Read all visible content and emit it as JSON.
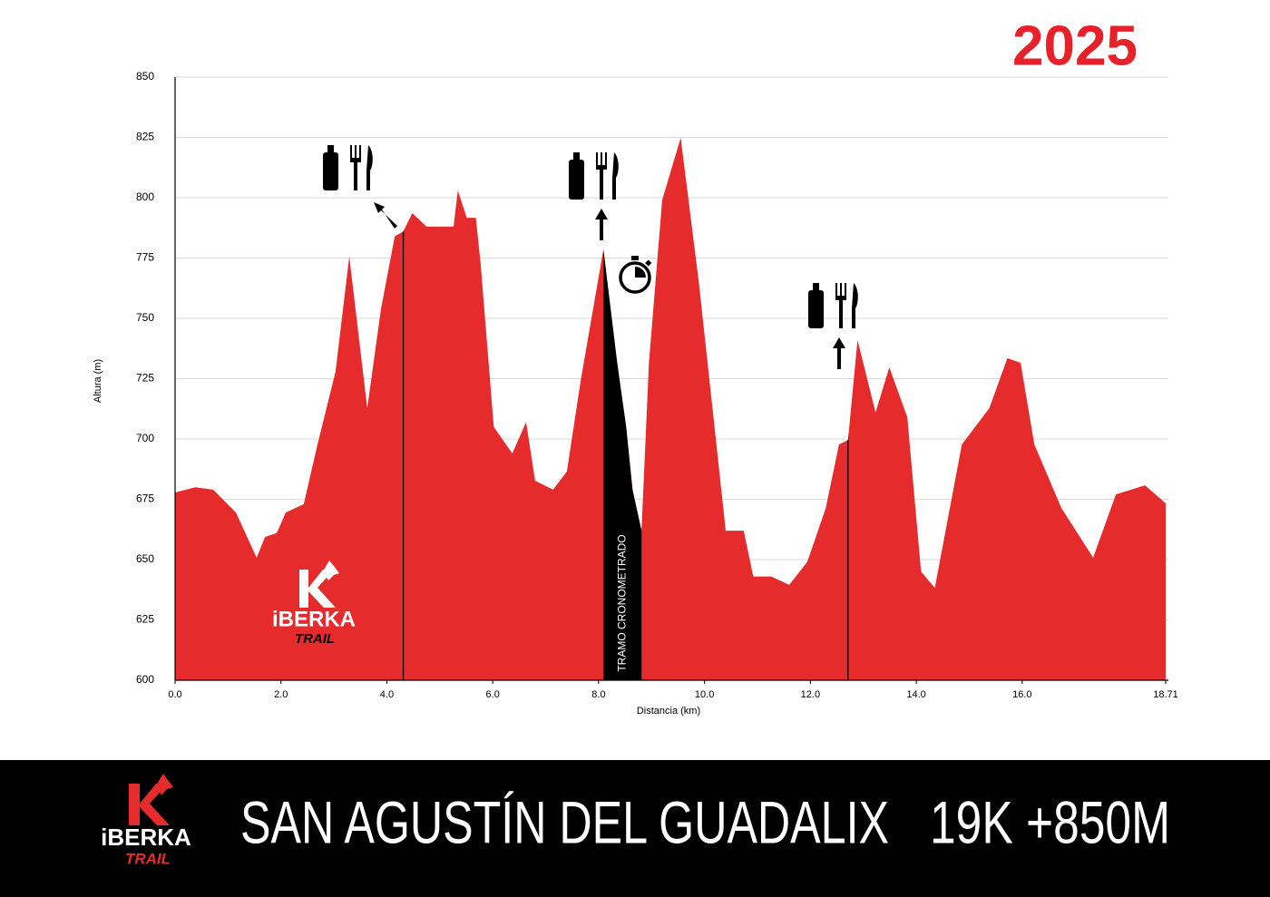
{
  "chart_data": {
    "type": "area",
    "year": "2025",
    "ylabel": "Altura (m)",
    "xlabel": "Distancia (km)",
    "color": "#e52b2b",
    "x": [
      0,
      0.38,
      0.72,
      1.15,
      1.54,
      1.7,
      1.92,
      2.09,
      2.43,
      2.69,
      3.03,
      3.29,
      3.63,
      3.89,
      4.15,
      4.31,
      4.48,
      4.75,
      5.26,
      5.34,
      5.51,
      5.68,
      5.77,
      6.02,
      6.37,
      6.63,
      6.8,
      7.14,
      7.4,
      7.66,
      8.09,
      8.35,
      8.52,
      8.64,
      8.81,
      8.95,
      9.2,
      9.55,
      9.89,
      10.15,
      10.4,
      10.74,
      10.92,
      11.26,
      11.6,
      11.94,
      12.29,
      12.54,
      12.71,
      12.89,
      13.23,
      13.49,
      13.83,
      14.09,
      14.35,
      14.86,
      15.38,
      15.72,
      15.97,
      16.23,
      16.74,
      17.34,
      17.77,
      18.32,
      18.71
    ],
    "values": [
      677.8,
      680,
      679,
      669.5,
      650.8,
      659.4,
      661,
      669.5,
      673,
      697.7,
      727.8,
      775.6,
      712.8,
      754,
      784,
      786,
      793.6,
      788,
      788,
      803,
      791.7,
      791.7,
      773,
      705,
      694,
      707,
      682.7,
      679,
      686.5,
      724,
      778.6,
      731.6,
      705,
      679,
      662,
      731.6,
      799,
      824.8,
      765.4,
      712.8,
      662,
      662,
      643,
      643,
      639.5,
      649,
      671.4,
      697.7,
      699.6,
      741,
      711,
      729.7,
      709,
      645,
      638.3,
      697.7,
      712.8,
      733.5,
      731.6,
      697.7,
      671.4,
      650.8,
      677,
      680.8,
      673.3
    ],
    "highlight": {
      "label": "TRAMO CRONOMETRADO",
      "x": [
        8.09,
        8.81
      ],
      "color": "#000000"
    },
    "markers": [
      4.31,
      12.71
    ],
    "xlim": [
      0,
      18.71
    ],
    "xticks": [
      {
        "value": 0,
        "label": "0.0"
      },
      {
        "value": 2,
        "label": "2.0"
      },
      {
        "value": 4,
        "label": "4.0"
      },
      {
        "value": 6,
        "label": "6.0"
      },
      {
        "value": 8,
        "label": "8.0"
      },
      {
        "value": 10,
        "label": "10.0"
      },
      {
        "value": 12,
        "label": "12.0"
      },
      {
        "value": 14,
        "label": "14.0"
      },
      {
        "value": 16,
        "label": "16.0"
      },
      18.71
    ],
    "ylim": [
      600,
      850
    ],
    "yticks": [
      600,
      625,
      650,
      675,
      700,
      725,
      750,
      775,
      800,
      825,
      850
    ],
    "grid": true
  },
  "logo": {
    "name": "iBERKA",
    "sub": "TRAIL"
  },
  "footer": {
    "title": "SAN AGUSTÍN DEL GUADALIX",
    "stats": "19K +850M"
  }
}
